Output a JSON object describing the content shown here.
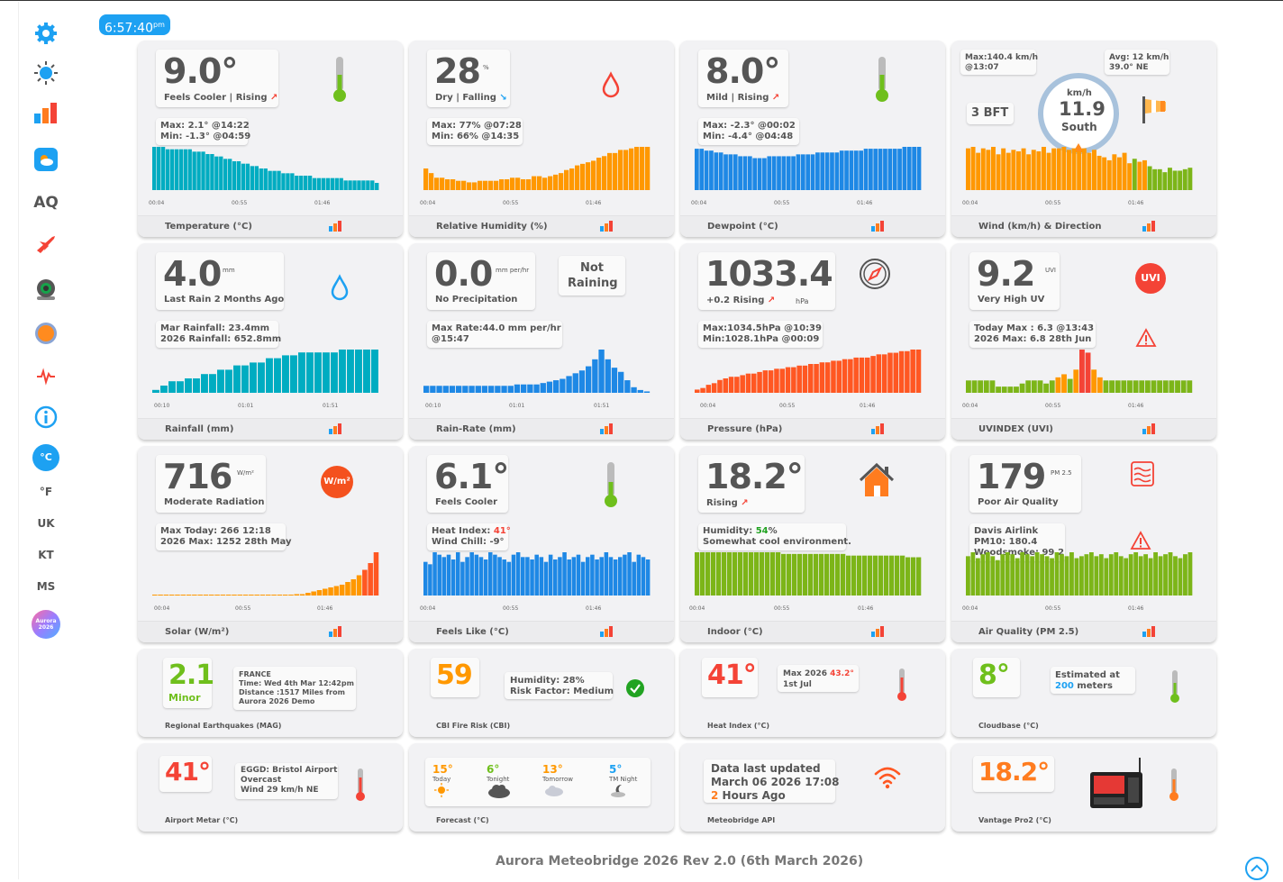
{
  "clock": {
    "time": "6:57:40",
    "ampm": "pm"
  },
  "sidebar": {
    "aq": "AQ",
    "celsius": "°C",
    "fahrenheit": "°F",
    "uk": "UK",
    "kt": "KT",
    "ms": "MS",
    "badge": "Aurora 2026"
  },
  "tiles": {
    "temp": {
      "value": "9.0°",
      "sub": "Feels Cooler | Rising",
      "max": "Max: 2.1° @14:22",
      "min": "Min: -1.3° @04:59",
      "title": "Temperature (°C)",
      "ticks": [
        "00:04",
        "00:55",
        "01:46"
      ]
    },
    "humidity": {
      "value": "28",
      "unit": "%",
      "sub": "Dry | Falling",
      "max": "Max: 77% @07:28",
      "min": "Min: 66% @14:35",
      "title": "Relative Humidity (%)",
      "ticks": [
        "00:04",
        "00:55",
        "01:46"
      ]
    },
    "dewpoint": {
      "value": "8.0°",
      "sub": "Mild | Rising",
      "max": "Max: -2.3° @00:02",
      "min": "Min: -4.4° @04:48",
      "title": "Dewpoint (°C)",
      "ticks": [
        "00:04",
        "00:55",
        "01:46"
      ]
    },
    "wind": {
      "max": "Max:140.4 km/h",
      "maxat": "@13:07",
      "avg": "Avg: 12 km/h",
      "avgdir": "39.0° NE",
      "bft": "3 BFT",
      "unit": "km/h",
      "value": "11.9",
      "dir": "South",
      "title": "Wind (km/h) & Direction",
      "ticks": [
        "00:04",
        "00:55",
        "01:46"
      ]
    },
    "rain": {
      "value": "4.0",
      "unit": "mm",
      "sub": "Last Rain 2 Months Ago",
      "l1": "Mar Rainfall: 23.4mm",
      "l2": "2026 Rainfall: 652.8mm",
      "title": "Rainfall (mm)",
      "ticks": [
        "00:10",
        "01:01",
        "01:51"
      ]
    },
    "rainrate": {
      "value": "0.0",
      "unit": "mm per/hr",
      "sub": "No Precipitation",
      "status1": "Not",
      "status2": "Raining",
      "l1": "Max Rate:44.0 mm per/hr",
      "l2": "@15:47",
      "title": "Rain-Rate (mm)",
      "ticks": [
        "00:10",
        "01:01",
        "01:51"
      ]
    },
    "pressure": {
      "value": "1033.4",
      "sub": "+0.2 Rising",
      "unit": "hPa",
      "l1": "Max:1034.5hPa @10:39",
      "l2": "Min:1028.1hPa @00:09",
      "title": "Pressure (hPa)",
      "ticks": [
        "00:04",
        "00:55",
        "01:46"
      ]
    },
    "uv": {
      "value": "9.2",
      "unit": "UVI",
      "sub": "Very High UV",
      "badge": "UVI",
      "l1": "Today Max : 6.3 @13:43",
      "l2": "2026 Max: 6.8 28th Jun",
      "title": "UVINDEX (UVI)",
      "ticks": [
        "00:04",
        "00:55",
        "01:46"
      ]
    },
    "solar": {
      "value": "716",
      "unit": "W/m²",
      "sub": "Moderate Radiation",
      "badge": "W/m²",
      "l1": "Max Today: 266 12:18",
      "l2": "2026 Max: 1252 28th May",
      "title": "Solar (W/m²)",
      "ticks": [
        "00:04",
        "00:55",
        "01:46"
      ]
    },
    "feels": {
      "value": "6.1°",
      "sub": "Feels Cooler",
      "l1a": "Heat Index: ",
      "l1b": "41°",
      "l2": "Wind Chill: -9°",
      "title": "Feels Like (°C)",
      "ticks": [
        "00:04",
        "00:55",
        "01:46"
      ]
    },
    "indoor": {
      "value": "18.2°",
      "sub": "Rising",
      "l1a": "Humidity: ",
      "l1b": "54",
      "l1c": "%",
      "l2": "Somewhat cool environment.",
      "title": "Indoor (°C)",
      "ticks": [
        "00:04",
        "00:55",
        "01:46"
      ]
    },
    "aqi": {
      "value": "179",
      "unit": "PM 2.5",
      "sub": "Poor Air Quality",
      "l1": "Davis Airlink",
      "l2": "PM10: 180.4",
      "l3": "Woodsmoke: 99.2",
      "title": "Air Quality (PM 2.5)",
      "ticks": [
        "00:04",
        "00:55",
        "01:46"
      ]
    }
  },
  "small": {
    "quake": {
      "value": "2.1",
      "sub": "Minor",
      "l1": "FRANCE",
      "l2": "Time: Wed 4th Mar 12:42pm",
      "l3": "Distance :1517 Miles from",
      "l4": "Aurora 2026 Demo",
      "title": "Regional Earthquakes (MAG)"
    },
    "fire": {
      "value": "59",
      "l1": "Humidity: 28%",
      "l2": "Risk Factor: Medium",
      "title": "CBI Fire Risk (CBI)"
    },
    "heat": {
      "value": "41°",
      "l1a": "Max 2026 ",
      "l1b": "43.2°",
      "l2": "1st Jul",
      "title": "Heat Index (°C)"
    },
    "cloud": {
      "value": "8°",
      "l1": "Estimated at",
      "l2a": "200",
      "l2b": " meters",
      "title": "Cloudbase (°C)"
    },
    "metar": {
      "value": "41°",
      "l1": "EGGD: Bristol Airport",
      "l2": "Overcast",
      "l3": "Wind 29 km/h NE",
      "title": "Airport Metar (°C)"
    },
    "forecast": {
      "title": "Forecast (°C)",
      "items": [
        {
          "t": "15°",
          "l": "Today"
        },
        {
          "t": "6°",
          "l": "Tonight"
        },
        {
          "t": "13°",
          "l": "Tomorrow"
        },
        {
          "t": "5°",
          "l": "TM Night"
        }
      ]
    },
    "api": {
      "l1": "Data last updated",
      "l2": "March 06 2026 17:08",
      "l3a": "2",
      "l3b": " Hours Ago",
      "title": "Meteobridge API"
    },
    "vantage": {
      "value": "18.2°",
      "title": "Vantage Pro2 (°C)"
    }
  },
  "footer": "Aurora Meteobridge 2026 Rev 2.0 (6th March 2026)",
  "chart_data": [
    {
      "type": "bar",
      "title": "Temperature (°C)",
      "values": [
        18,
        18,
        18,
        17,
        17,
        17,
        17,
        17,
        17,
        16,
        16,
        16,
        15,
        15,
        14,
        14,
        13,
        13,
        12,
        12,
        11,
        11,
        10,
        10,
        9,
        9,
        8,
        8,
        8,
        7,
        7,
        7,
        6,
        6,
        6,
        6,
        5,
        5,
        5,
        5,
        5,
        5,
        5,
        4,
        4,
        4,
        4,
        4,
        4,
        4,
        3
      ],
      "colors": "cyan"
    },
    {
      "type": "bar",
      "title": "Relative Humidity (%)",
      "values": [
        14,
        11,
        8,
        8,
        7,
        7,
        6,
        6,
        5,
        5,
        6,
        6,
        6,
        6,
        7,
        7,
        8,
        8,
        7,
        7,
        9,
        9,
        8,
        9,
        10,
        11,
        13,
        14,
        16,
        17,
        18,
        19,
        21,
        22,
        24,
        24,
        26,
        26,
        27,
        28,
        28,
        28
      ],
      "colors": "orange"
    },
    {
      "type": "bar",
      "title": "Dewpoint (°C)",
      "values": [
        22,
        22,
        21,
        21,
        20,
        20,
        19,
        19,
        19,
        18,
        18,
        18,
        17,
        17,
        17,
        18,
        18,
        18,
        18,
        18,
        18,
        19,
        19,
        19,
        19,
        20,
        20,
        20,
        20,
        20,
        21,
        21,
        21,
        21,
        21,
        22,
        22,
        22,
        22,
        22,
        22,
        22,
        22,
        23,
        23,
        23,
        23
      ],
      "colors": "blue"
    },
    {
      "type": "bar",
      "title": "Wind (km/h) & Direction",
      "values": [
        28,
        29,
        25,
        28,
        27,
        29,
        24,
        28,
        25,
        27,
        26,
        28,
        24,
        27,
        26,
        29,
        25,
        28,
        28,
        29,
        27,
        28,
        26,
        28,
        25,
        27,
        23,
        22,
        20,
        24,
        22,
        25,
        18,
        21,
        19,
        20,
        16,
        14,
        14,
        12,
        15,
        13,
        13,
        14,
        15
      ],
      "colors": "windmix"
    },
    {
      "type": "bar",
      "title": "Rainfall (mm)",
      "values": [
        2,
        5,
        8,
        8,
        10,
        10,
        13,
        13,
        16,
        16,
        19,
        19,
        21,
        21,
        24,
        24,
        26,
        26,
        28,
        28,
        28,
        28,
        28,
        30,
        30,
        30,
        30,
        30
      ],
      "colors": "cyan"
    },
    {
      "type": "bar",
      "title": "Rain-Rate (mm)",
      "values": [
        5,
        5,
        5,
        5,
        5,
        5,
        5,
        5,
        5,
        5,
        5,
        5,
        5,
        5,
        6,
        6,
        6,
        6,
        7,
        8,
        9,
        10,
        12,
        14,
        16,
        19,
        24,
        31,
        24,
        18,
        15,
        9,
        4,
        2,
        1
      ],
      "colors": "blue"
    },
    {
      "type": "bar",
      "title": "Pressure (hPa)",
      "values": [
        2,
        3,
        5,
        6,
        8,
        9,
        10,
        10,
        11,
        12,
        12,
        13,
        14,
        14,
        15,
        15,
        16,
        16,
        17,
        17,
        18,
        18,
        19,
        19,
        20,
        20,
        21,
        21,
        22,
        22,
        22,
        23,
        24,
        24,
        25,
        25,
        26,
        26,
        27,
        27
      ],
      "colors": "redorange"
    },
    {
      "type": "bar",
      "title": "UVINDEX (UVI)",
      "values": [
        8,
        8,
        8,
        8,
        8,
        4,
        4,
        4,
        4,
        6,
        8,
        8,
        8,
        6,
        8,
        10,
        12,
        9,
        15,
        28,
        26,
        15,
        10,
        8,
        8,
        8,
        8,
        8,
        8,
        8,
        8,
        8,
        8,
        8,
        8,
        8,
        8,
        8
      ],
      "colors": "uvmix"
    },
    {
      "type": "bar",
      "title": "Solar (W/m²)",
      "values": [
        0,
        0,
        0,
        0,
        0,
        0,
        0,
        0,
        0,
        0,
        0,
        0,
        0,
        0,
        0,
        0,
        0,
        0,
        0,
        0,
        0,
        0,
        0,
        0,
        0,
        1,
        1,
        2,
        3,
        4,
        5,
        6,
        7,
        8,
        10,
        12,
        15,
        19,
        24,
        32
      ],
      "colors": "solar"
    },
    {
      "type": "bar",
      "title": "Feels Like (°C)",
      "values": [
        14,
        13,
        18,
        17,
        16,
        17,
        15,
        18,
        14,
        16,
        18,
        17,
        16,
        15,
        18,
        17,
        16,
        15,
        14,
        17,
        18,
        16,
        16,
        15,
        17,
        16,
        14,
        17,
        15,
        16,
        18,
        15,
        16,
        17,
        14,
        16,
        17,
        15,
        16,
        18,
        16,
        15,
        16,
        17,
        18,
        14,
        17,
        16,
        15
      ],
      "colors": "blue"
    },
    {
      "type": "bar",
      "title": "Indoor (°C)",
      "values": [
        26,
        26,
        26,
        26,
        26,
        26,
        26,
        26,
        26,
        26,
        26,
        26,
        26,
        26,
        26,
        26,
        25,
        25,
        25,
        25,
        25,
        25,
        25,
        25,
        25,
        25,
        25,
        25,
        24,
        24,
        24,
        24,
        24,
        24,
        24,
        24,
        24,
        24,
        24,
        23,
        23,
        23
      ],
      "colors": "green"
    },
    {
      "type": "bar",
      "title": "Air Quality (PM 2.5)",
      "values": [
        20,
        22,
        19,
        21,
        22,
        20,
        18,
        21,
        22,
        21,
        19,
        22,
        21,
        20,
        22,
        21,
        20,
        19,
        22,
        21,
        20,
        22,
        19,
        20,
        21,
        22,
        20,
        21,
        19,
        21,
        22,
        20,
        19,
        21,
        22,
        20,
        21,
        19,
        22,
        20,
        21,
        22,
        20,
        19,
        21,
        22
      ],
      "colors": "green"
    }
  ]
}
